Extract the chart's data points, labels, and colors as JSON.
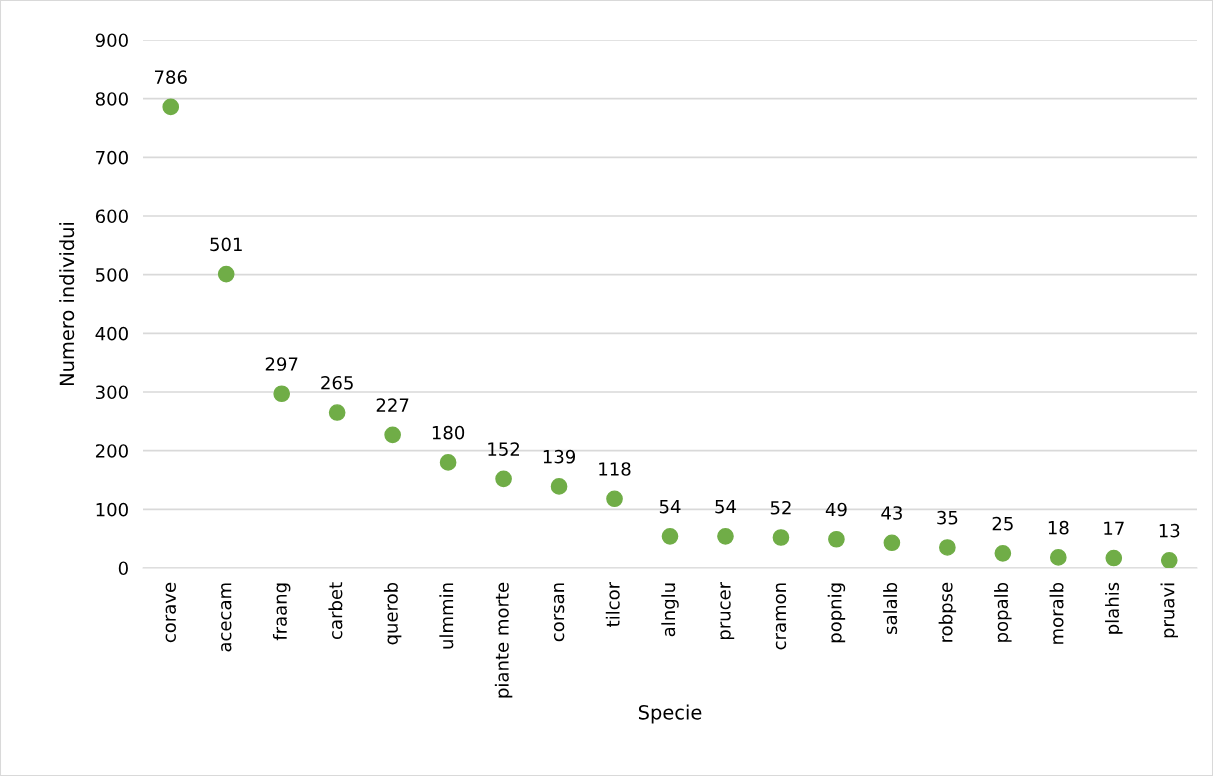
{
  "chart_data": {
    "type": "scatter",
    "xlabel": "Specie",
    "ylabel": "Numero individui",
    "categories": [
      "corave",
      "acecam",
      "fraang",
      "carbet",
      "querob",
      "ulmmin",
      "piante morte",
      "corsan",
      "tilcor",
      "alnglu",
      "prucer",
      "cramon",
      "popnig",
      "salalb",
      "robpse",
      "popalb",
      "moralb",
      "plahis",
      "pruavi"
    ],
    "values": [
      786,
      501,
      297,
      265,
      227,
      180,
      152,
      139,
      118,
      54,
      54,
      52,
      49,
      43,
      35,
      25,
      18,
      17,
      13
    ],
    "color": "#70ad47",
    "marker": "circle",
    "data_labels": true,
    "grid": "y",
    "ylim": [
      0,
      900
    ],
    "yticks": [
      0,
      100,
      200,
      300,
      400,
      500,
      600,
      700,
      800,
      900
    ]
  }
}
